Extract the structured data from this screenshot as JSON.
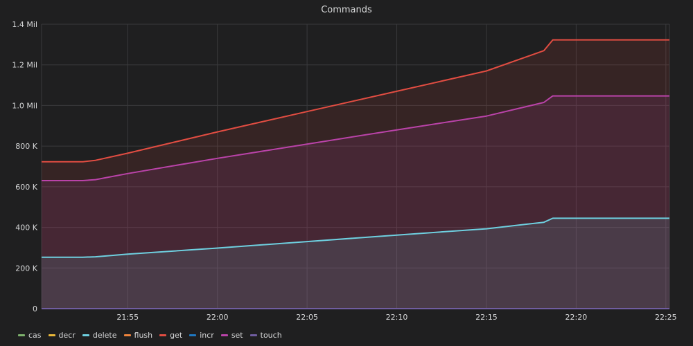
{
  "chart_data": {
    "type": "area",
    "title": "Commands",
    "xlabel": "",
    "ylabel": "",
    "x_ticks": [
      "21:55",
      "22:00",
      "22:05",
      "22:10",
      "22:15",
      "22:20",
      "22:25"
    ],
    "x_tick_minutes": [
      0,
      5,
      10,
      15,
      20,
      25,
      30
    ],
    "x_range_minutes": [
      -4.8,
      30.2
    ],
    "y_ticks": [
      {
        "value": 0,
        "label": "0"
      },
      {
        "value": 200000,
        "label": "200 K"
      },
      {
        "value": 400000,
        "label": "400 K"
      },
      {
        "value": 600000,
        "label": "600 K"
      },
      {
        "value": 800000,
        "label": "800 K"
      },
      {
        "value": 1000000,
        "label": "1.0 Mil"
      },
      {
        "value": 1200000,
        "label": "1.2 Mil"
      },
      {
        "value": 1400000,
        "label": "1.4 Mil"
      }
    ],
    "ylim": [
      0,
      1400000
    ],
    "grid": true,
    "legend_position": "bottom-left",
    "series": [
      {
        "name": "cas",
        "color": "#7eb26d",
        "x": [
          -4.8,
          30.2
        ],
        "values": [
          0,
          0
        ]
      },
      {
        "name": "decr",
        "color": "#eab839",
        "x": [
          -4.8,
          30.2
        ],
        "values": [
          0,
          0
        ]
      },
      {
        "name": "delete",
        "color": "#6ed0e0",
        "x": [
          -4.8,
          -2.5,
          -1.8,
          0,
          5,
          10,
          15,
          20,
          23.2,
          23.7,
          30.2
        ],
        "values": [
          253000,
          253000,
          255000,
          268000,
          298000,
          330000,
          362000,
          393000,
          425000,
          445000,
          445000
        ]
      },
      {
        "name": "flush",
        "color": "#ef843c",
        "x": [
          -4.8,
          30.2
        ],
        "values": [
          0,
          0
        ]
      },
      {
        "name": "get",
        "color": "#e24d42",
        "x": [
          -4.8,
          -2.5,
          -1.8,
          0,
          5,
          10,
          15,
          20,
          23.2,
          23.7,
          30.2
        ],
        "values": [
          723000,
          723000,
          730000,
          765000,
          870000,
          970000,
          1070000,
          1170000,
          1270000,
          1323000,
          1323000
        ]
      },
      {
        "name": "incr",
        "color": "#1f78c1",
        "x": [
          -4.8,
          30.2
        ],
        "values": [
          0,
          0
        ]
      },
      {
        "name": "set",
        "color": "#ba43a9",
        "x": [
          -4.8,
          -2.5,
          -1.8,
          0,
          5,
          10,
          15,
          20,
          23.2,
          23.7,
          30.2
        ],
        "values": [
          630000,
          630000,
          635000,
          665000,
          740000,
          810000,
          880000,
          948000,
          1015000,
          1047000,
          1047000
        ]
      },
      {
        "name": "touch",
        "color": "#705da0",
        "x": [
          -4.8,
          30.2
        ],
        "values": [
          0,
          0
        ]
      }
    ]
  }
}
